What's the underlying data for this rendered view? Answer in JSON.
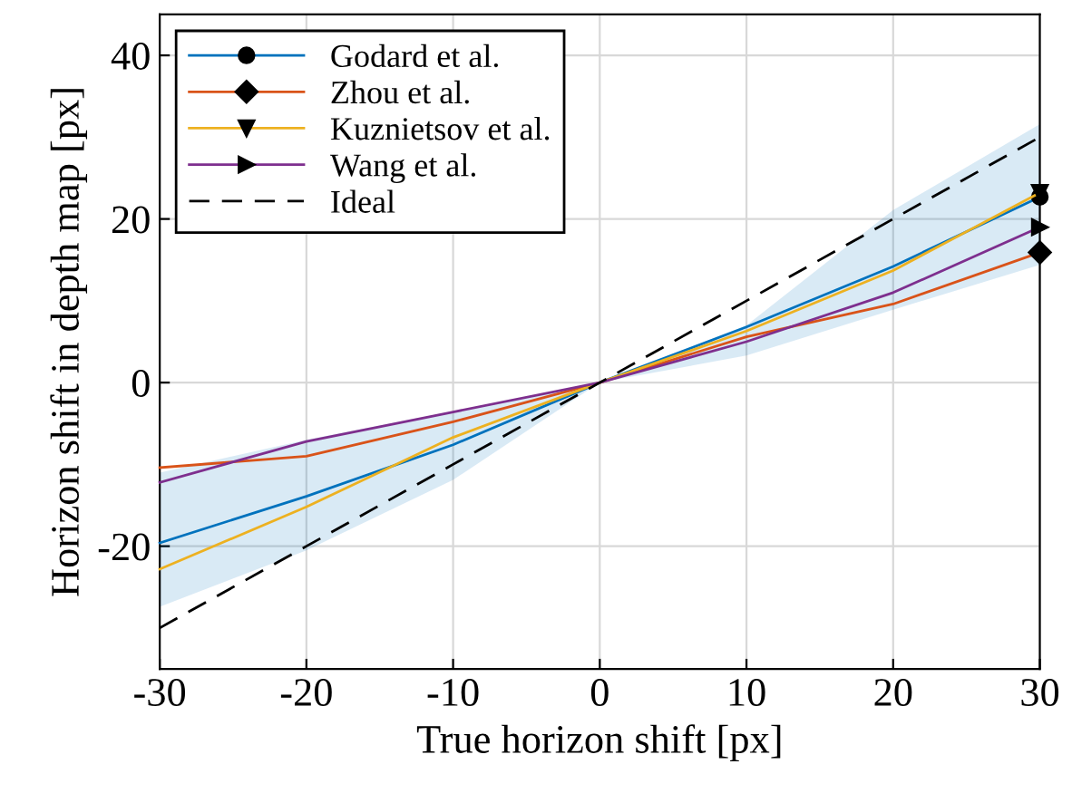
{
  "chart_data": {
    "type": "line",
    "xlabel": "True horizon shift [px]",
    "ylabel": "Horizon shift in depth map [px]",
    "x": [
      -30,
      -20,
      -10,
      0,
      10,
      20,
      30
    ],
    "xlim": [
      -30,
      30
    ],
    "xticks": [
      -30,
      -20,
      -10,
      0,
      10,
      20,
      30
    ],
    "ylim": [
      -35,
      45
    ],
    "yticks": [
      -20,
      0,
      20,
      40
    ],
    "grid": true,
    "legend": "top left",
    "series": [
      {
        "name": "Godard et al.",
        "color": "#0072bd",
        "values": [
          -19.6,
          -13.9,
          -7.6,
          0,
          6.8,
          14.2,
          22.7
        ],
        "lower": [
          -27.4,
          -20.5,
          -11.9,
          0,
          3.3,
          8.9,
          14.4
        ],
        "upper": [
          -11,
          -7,
          -3.5,
          0,
          7,
          21.1,
          31.6
        ]
      },
      {
        "name": "Zhou et al.",
        "color": "#d95319",
        "values": [
          -10.4,
          -9.0,
          -4.8,
          0,
          5.6,
          9.6,
          15.9
        ]
      },
      {
        "name": "Kuznietsov et al.",
        "color": "#edb120",
        "values": [
          -22.8,
          -15.2,
          -6.7,
          0,
          6.3,
          13.7,
          23.2
        ]
      },
      {
        "name": "Wang et al.",
        "color": "#7e2f8e",
        "values": [
          -12.2,
          -7.2,
          -3.6,
          0,
          5.0,
          11.0,
          19.0
        ]
      },
      {
        "name": "Ideal",
        "color": "#000000",
        "line_style": "dashed",
        "values": [
          -30,
          -20,
          -10,
          0,
          10,
          20,
          30
        ]
      }
    ]
  }
}
